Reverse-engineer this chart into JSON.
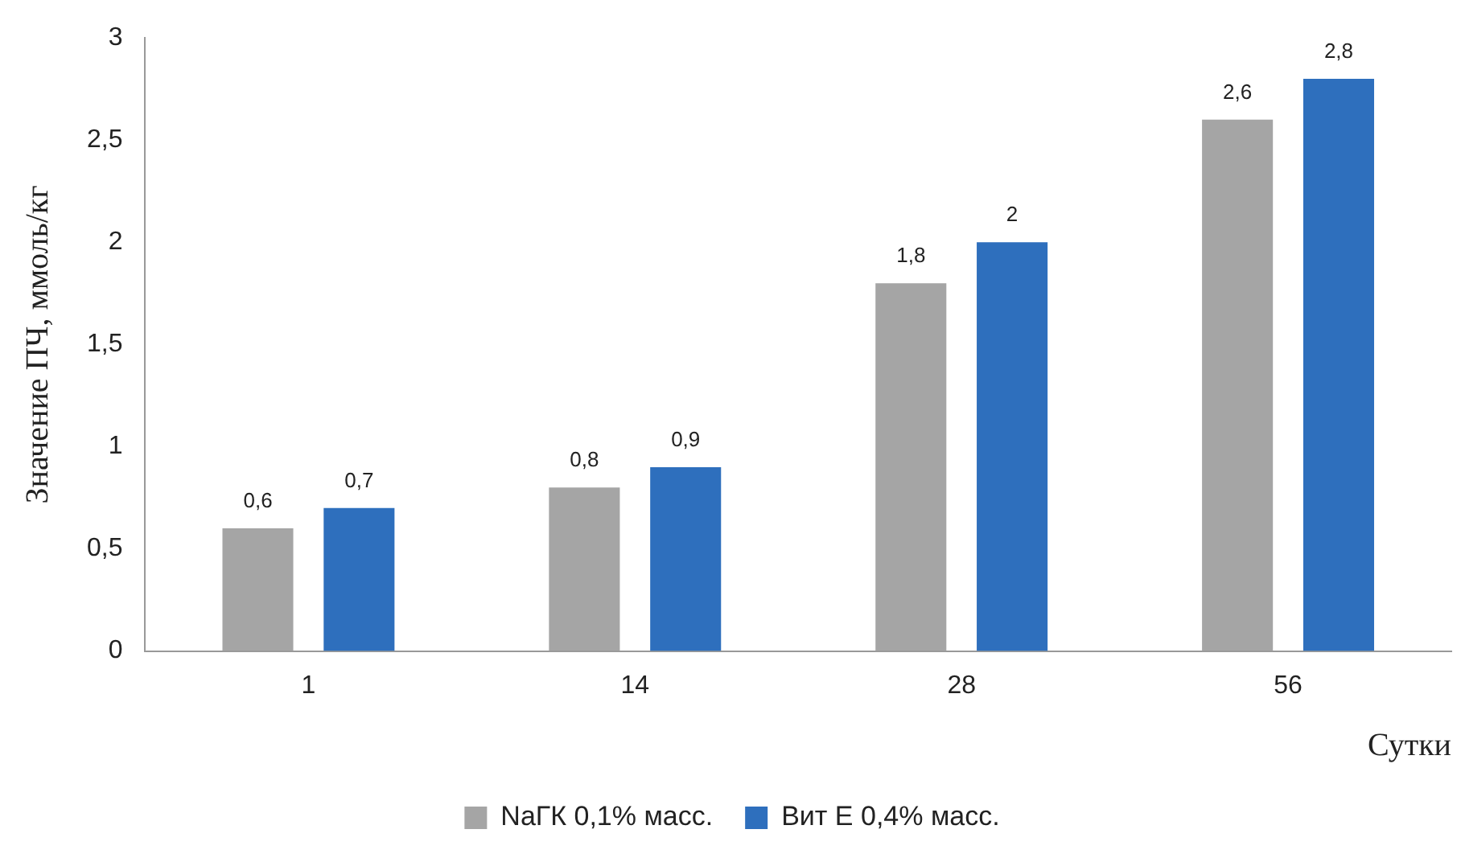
{
  "chart_data": {
    "type": "bar",
    "xlabel": "Сутки",
    "ylabel": "Значение ПЧ, ммоль/кг",
    "categories": [
      "1",
      "14",
      "28",
      "56"
    ],
    "series": [
      {
        "name": "NaГК 0,1% масс.",
        "color": "#a5a5a5",
        "values": [
          0.6,
          0.8,
          1.8,
          2.6
        ],
        "value_labels": [
          "0,6",
          "0,8",
          "1,8",
          "2,6"
        ]
      },
      {
        "name": "Вит E 0,4% масс.",
        "color": "#2e6fbd",
        "values": [
          0.7,
          0.9,
          2,
          2.8
        ],
        "value_labels": [
          "0,7",
          "0,9",
          "2",
          "2,8"
        ]
      }
    ],
    "ylim": [
      0,
      3
    ],
    "yticks": [
      0,
      {
        "value": 0.5,
        "label": "0,5"
      },
      1,
      {
        "value": 1.5,
        "label": "1,5"
      },
      2,
      {
        "value": 2.5,
        "label": "2,5"
      },
      3
    ],
    "grid": false,
    "legend": "bottom"
  }
}
